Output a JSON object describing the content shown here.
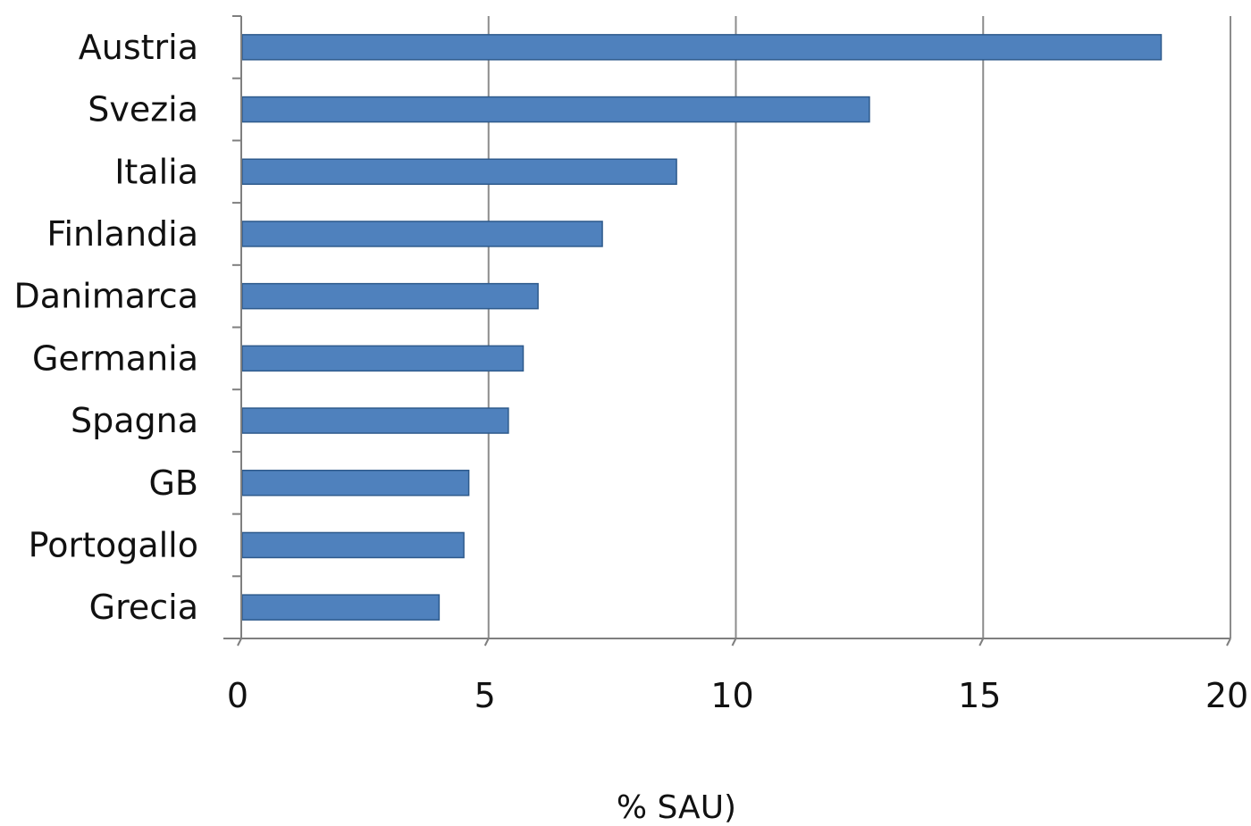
{
  "chart_data": {
    "type": "bar",
    "orientation": "horizontal",
    "categories": [
      "Austria",
      "Svezia",
      "Italia",
      "Finlandia",
      "Danimarca",
      "Germania",
      "Spagna",
      "GB",
      "Portogallo",
      "Grecia"
    ],
    "values": [
      18.6,
      12.7,
      8.8,
      7.3,
      6.0,
      5.7,
      5.4,
      4.6,
      4.5,
      4.0
    ],
    "xlabel": "% SAU)",
    "ylabel": "",
    "title": "",
    "xlim": [
      0,
      20
    ],
    "xticks": [
      "0",
      "5",
      "10",
      "15",
      "20"
    ],
    "grid": "vertical",
    "legend": "none",
    "colors": {
      "bar": "#4F81BD",
      "bar_edge": "#2E5A8C",
      "grid": "#8C8C8C",
      "axis": "#7F7F7F"
    }
  }
}
